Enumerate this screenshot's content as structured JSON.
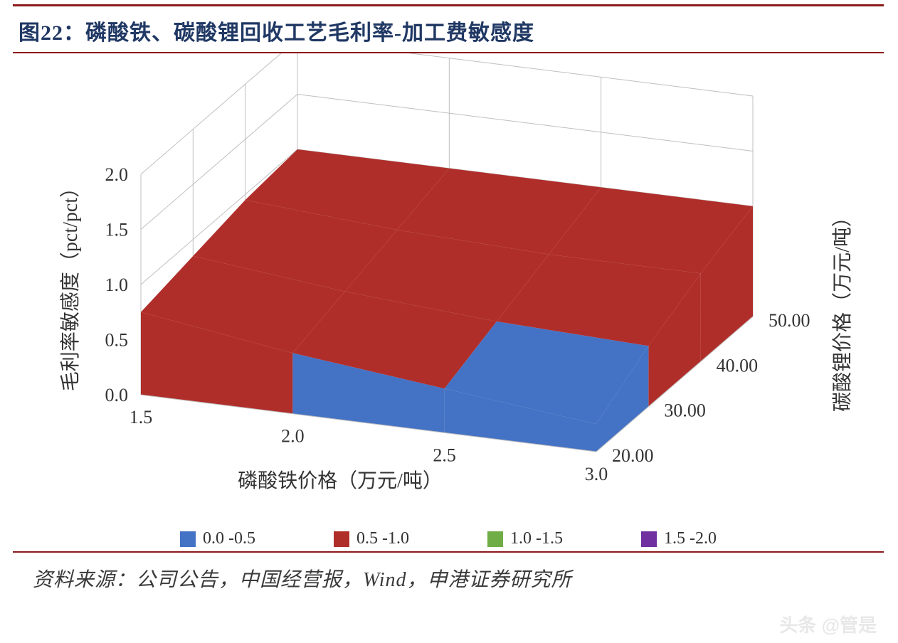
{
  "title": "图22：磷酸铁、碳酸锂回收工艺毛利率-加工费敏感度",
  "source": "资料来源：公司公告，中国经营报，Wind，申港证券研究所",
  "watermark": "头条 @管是",
  "chart": {
    "type": "3d-surface",
    "background_color": "#ffffff",
    "wall_color": "#ffffff",
    "grid_color": "#bfbfbf",
    "floor_grid_color": "#bfbfbf",
    "z_axis": {
      "title": "毛利率敏感度（pct/pct）",
      "min": 0.0,
      "max": 2.0,
      "tick_step": 0.5,
      "ticks": [
        "0.0",
        "0.5",
        "1.0",
        "1.5",
        "2.0"
      ]
    },
    "x_axis": {
      "title": "磷酸铁价格（万元/吨）",
      "min": 1.5,
      "max": 3.0,
      "tick_step": 0.5,
      "ticks": [
        "1.5",
        "2.0",
        "2.5",
        "3.0"
      ]
    },
    "y_axis": {
      "title": "碳酸锂价格（万元/吨）",
      "min": 20.0,
      "max": 50.0,
      "tick_step": 10.0,
      "ticks": [
        "20.00",
        "30.00",
        "40.00",
        "50.00"
      ]
    },
    "surface": {
      "comment": "z value (sensitivity) over x=磷酸铁价格, y=碳酸锂价格; grid 4x4 read from color bands: front-left ≈0.75, front-right ≈0.25, back-left ≈1.0, back-right ≈1.0",
      "x_vals": [
        1.5,
        2.0,
        2.5,
        3.0
      ],
      "y_vals": [
        20.0,
        30.0,
        40.0,
        50.0
      ],
      "z_grid": [
        [
          0.75,
          0.55,
          0.4,
          0.25
        ],
        [
          0.85,
          0.7,
          0.6,
          0.55
        ],
        [
          0.95,
          0.85,
          0.8,
          0.8
        ],
        [
          1.0,
          1.0,
          1.0,
          1.0
        ]
      ],
      "band_colors": {
        "0.0-0.5": "#4472c4",
        "0.5-1.0": "#b02e2a",
        "1.0-1.5": "#70ad47",
        "1.5-2.0": "#7030a0"
      }
    },
    "legend": [
      {
        "label": "0.0 -0.5",
        "color": "#4472c4"
      },
      {
        "label": "0.5 -1.0",
        "color": "#b02e2a"
      },
      {
        "label": "1.0 -1.5",
        "color": "#70ad47"
      },
      {
        "label": "1.5 -2.0",
        "color": "#7030a0"
      }
    ],
    "title_fontsize": 30,
    "axis_title_fontsize": 28,
    "tick_fontsize": 26,
    "legend_fontsize": 24,
    "title_color": "#203864",
    "rule_color": "#8b1a1a"
  }
}
